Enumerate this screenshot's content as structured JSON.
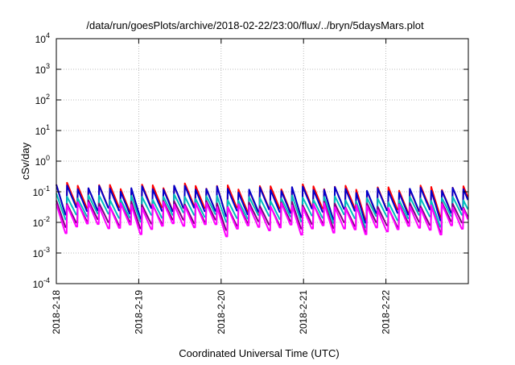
{
  "chart_data": {
    "type": "line",
    "title": "/data/run/goesPlots/archive/2018-02-22/23:00/flux/../bryn/5daysMars.plot",
    "xlabel": "Coordinated Universal Time (UTC)",
    "ylabel": "cSv/day",
    "x_categories": [
      "2018-2-18",
      "2018-2-19",
      "2018-2-20",
      "2018-2-21",
      "2018-2-22"
    ],
    "x_range_days": [
      0,
      5.0
    ],
    "y_scale": "log",
    "ylim": [
      0.0001,
      10000
    ],
    "y_ticks": [
      {
        "mant": "10",
        "exp": "4",
        "value": 10000
      },
      {
        "mant": "10",
        "exp": "3",
        "value": 1000
      },
      {
        "mant": "10",
        "exp": "2",
        "value": 100
      },
      {
        "mant": "10",
        "exp": "1",
        "value": 10
      },
      {
        "mant": "10",
        "exp": "0",
        "value": 1
      },
      {
        "mant": "10",
        "exp": "-1",
        "value": 0.1
      },
      {
        "mant": "10",
        "exp": "-2",
        "value": 0.01
      },
      {
        "mant": "10",
        "exp": "-3",
        "value": 0.001
      },
      {
        "mant": "10",
        "exp": "-4",
        "value": 0.0001
      }
    ],
    "grid": true,
    "period_days": 0.13,
    "series": [
      {
        "color": "#ff0000",
        "peak": 0.16,
        "trough": 0.03
      },
      {
        "color": "#0000cc",
        "peak": 0.14,
        "trough": 0.027
      },
      {
        "color": "#00bfbf",
        "peak": 0.07,
        "trough": 0.018
      },
      {
        "color": "#800080",
        "peak": 0.045,
        "trough": 0.011
      },
      {
        "color": "#ff00ff",
        "peak": 0.04,
        "trough": 0.008
      }
    ]
  }
}
